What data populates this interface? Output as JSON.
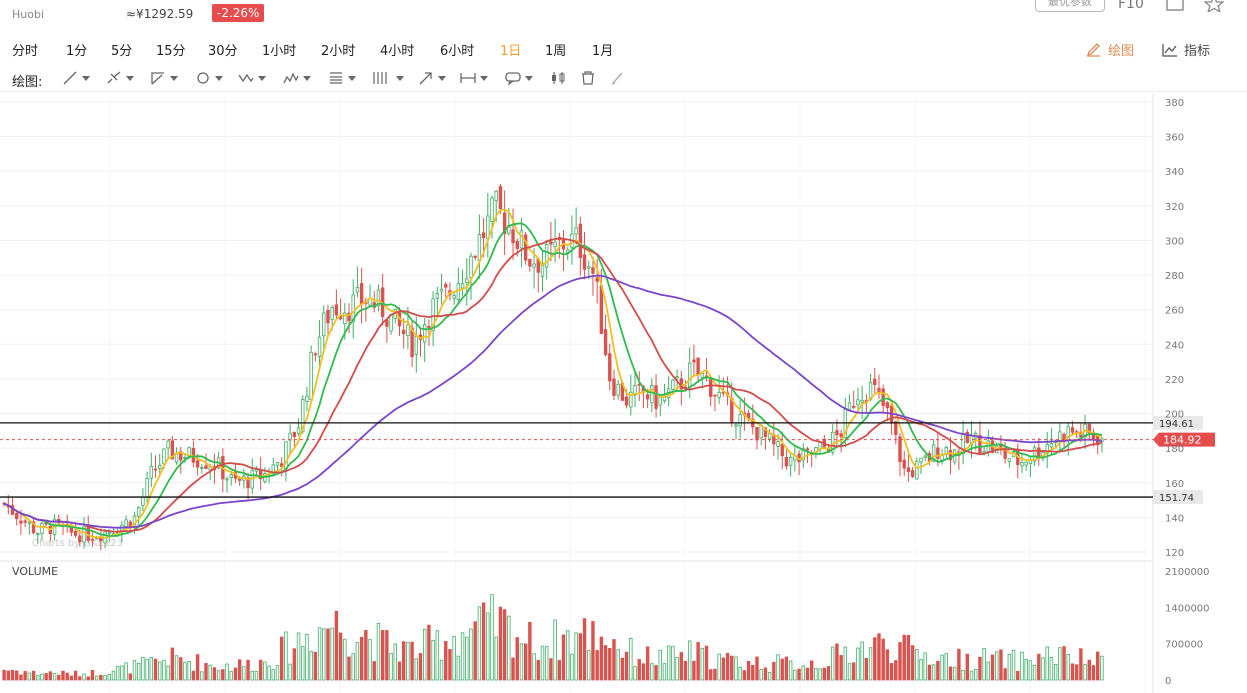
{
  "header": {
    "exchange": "Huobi",
    "cny_price": "≈¥1292.59",
    "change": "-2.26%",
    "param_button": "最优参数",
    "f10": "F10"
  },
  "periods": [
    "分时",
    "1分",
    "5分",
    "15分",
    "30分",
    "1小时",
    "2小时",
    "4小时",
    "6小时",
    "1日",
    "1周",
    "1月"
  ],
  "active_period": "1日",
  "right_tools": {
    "draw": "绘图",
    "indicator": "指标"
  },
  "drawbar": {
    "label": "绘图:"
  },
  "icons": {
    "drawbar": [
      "line-tool-icon",
      "pen-tool-icon",
      "angle-tool-icon",
      "circle-tool-icon",
      "wave-tool-icon",
      "pattern-tool-icon",
      "fib-tool-icon",
      "channel-tool-icon",
      "arrow-tool-icon",
      "measure-tool-icon",
      "comment-tool-icon",
      "candle-tool-icon",
      "trash-icon",
      "brush-icon"
    ]
  },
  "colors": {
    "up": "#3fae68",
    "down": "#d9534f",
    "ma_short": "#f0c020",
    "ma_mid": "#2ebb4f",
    "ma_long": "#d34c4c",
    "ma_trend": "#7a45c9",
    "current_price": "#e74c4c"
  },
  "chart_data": {
    "type": "candlestick",
    "price_axis": {
      "min": 120,
      "max": 380,
      "ticks": [
        120,
        140,
        160,
        180,
        200,
        220,
        240,
        260,
        280,
        300,
        320,
        340,
        360,
        380
      ]
    },
    "volume_axis": {
      "min": 0,
      "max": 2100000,
      "ticks": [
        0,
        700000,
        1400000,
        2100000
      ]
    },
    "volume_label": "VOLUME",
    "watermark": "Charts by GKE123",
    "support_lines": [
      194.61,
      151.74
    ],
    "support_labels": [
      "194.61",
      "151.74"
    ],
    "current_price": 184.92,
    "current_price_label": "184.92",
    "price_path": [
      148,
      140,
      132,
      135,
      131,
      130,
      131,
      135,
      140,
      165,
      178,
      176,
      174,
      170,
      160,
      162,
      165,
      175,
      195,
      240,
      262,
      262,
      266,
      262,
      250,
      240,
      260,
      268,
      282,
      300,
      318,
      307,
      290,
      288,
      298,
      300,
      280,
      220,
      208,
      212,
      207,
      215,
      225,
      218,
      205,
      196,
      190,
      180,
      172,
      175,
      180,
      188,
      212,
      215,
      198,
      165,
      170,
      180,
      178,
      185,
      182,
      176,
      172,
      178,
      185,
      190,
      188,
      186
    ],
    "volume_path": [
      200000,
      170000,
      120000,
      140000,
      110000,
      120000,
      150000,
      210000,
      260000,
      320000,
      420000,
      380000,
      330000,
      260000,
      280000,
      300000,
      360000,
      560000,
      760000,
      950000,
      1100000,
      950000,
      900000,
      700000,
      640000,
      560000,
      700000,
      800000,
      900000,
      1000000,
      1100000,
      950000,
      750000,
      700000,
      800000,
      850000,
      900000,
      800000,
      550000,
      450000,
      420000,
      450000,
      520000,
      440000,
      380000,
      330000,
      330000,
      320000,
      310000,
      320000,
      360000,
      480000,
      600000,
      650000,
      700000,
      580000,
      500000,
      420000,
      400000,
      380000,
      420000,
      380000,
      370000,
      430000,
      500000,
      420000,
      380000,
      350000
    ]
  }
}
